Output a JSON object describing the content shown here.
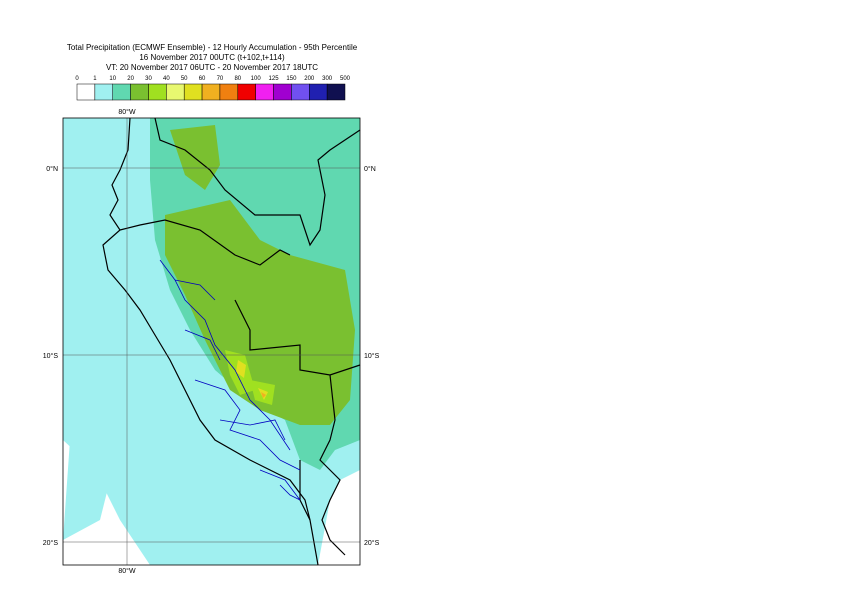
{
  "title": {
    "line1": "Total Precipitation (ECMWF Ensemble) - 12 Hourly Accumulation - 95th Percentile",
    "line2": "16 November 2017 00UTC (t+102,t+114)",
    "line3": "VT: 20 November 2017 06UTC - 20 November 2017 18UTC"
  },
  "legend": {
    "labels": [
      0,
      1,
      10,
      20,
      30,
      40,
      50,
      60,
      70,
      80,
      100,
      125,
      150,
      200,
      300,
      500
    ],
    "colors": [
      "#ffffff",
      "#a0f0f0",
      "#60d8b0",
      "#7ac030",
      "#a0e020",
      "#e8f870",
      "#e0e020",
      "#f0b020",
      "#f08010",
      "#f00000",
      "#f020f0",
      "#a000d0",
      "#7050f0",
      "#2020b0",
      "#101050"
    ]
  },
  "map": {
    "lon_labels": [
      "80°W"
    ],
    "lat_labels": [
      "0°N",
      "10°S",
      "20°S"
    ]
  }
}
